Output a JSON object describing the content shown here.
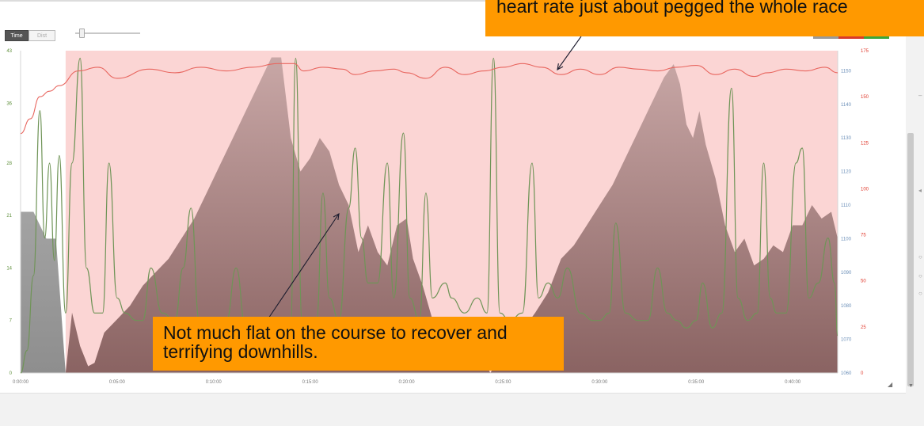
{
  "controls": {
    "time_label": "Time",
    "dist_label": "Dist"
  },
  "annotations": {
    "heart_rate": "heart rate just about pegged the whole race",
    "course": "Not much flat on the course to recover and terrifying downhills."
  },
  "colors": {
    "heart_rate_line": "#e8665f",
    "speed_line": "#6f9457",
    "elevation_fill": "#8b6464",
    "band_fill": "#fbd5d4",
    "callout": "#ff9900",
    "axis_left": "#5e8f3a",
    "axis_right_elev": "#6b8fb8",
    "axis_right_hr": "#e03a2d"
  },
  "legend_swatches": [
    "#9a9a9a",
    "#d83a2a",
    "#3aa63a"
  ],
  "chart_data": {
    "type": "line",
    "grid": false,
    "x_ticks": [
      "0:00:00",
      "0:05:00",
      "0:10:00",
      "0:15:00",
      "0:20:00",
      "0:25:00",
      "0:30:00",
      "0:35:00",
      "0:40:00"
    ],
    "x_tick_seconds": [
      0,
      300,
      600,
      900,
      1200,
      1500,
      1800,
      2100,
      2400
    ],
    "x_range": [
      0,
      2540
    ],
    "y_axes": {
      "speed": {
        "ticks": [
          "0",
          "7",
          "14",
          "21",
          "28",
          "36",
          "43"
        ],
        "range": [
          0,
          43
        ]
      },
      "elevation": {
        "ticks": [
          "1060",
          "1070",
          "1080",
          "1090",
          "1100",
          "1110",
          "1120",
          "1130",
          "1140",
          "1150"
        ],
        "range": [
          1060,
          1156
        ]
      },
      "heart_rate": {
        "ticks": [
          "0",
          "25",
          "50",
          "75",
          "100",
          "125",
          "150",
          "175"
        ],
        "range": [
          0,
          175
        ]
      }
    },
    "highlight_range": {
      "start": 140,
      "end": 2540
    },
    "series": [
      {
        "role": "heart_rate",
        "axis": "heart_rate",
        "points": [
          [
            0,
            130
          ],
          [
            30,
            138
          ],
          [
            60,
            150
          ],
          [
            90,
            153
          ],
          [
            120,
            156
          ],
          [
            180,
            164
          ],
          [
            240,
            166
          ],
          [
            300,
            160
          ],
          [
            400,
            165
          ],
          [
            480,
            163
          ],
          [
            560,
            166
          ],
          [
            640,
            164
          ],
          [
            720,
            166
          ],
          [
            800,
            168
          ],
          [
            850,
            168
          ],
          [
            880,
            164
          ],
          [
            940,
            166
          ],
          [
            1000,
            165
          ],
          [
            1040,
            162
          ],
          [
            1100,
            164
          ],
          [
            1160,
            165
          ],
          [
            1200,
            163
          ],
          [
            1260,
            160
          ],
          [
            1320,
            166
          ],
          [
            1380,
            162
          ],
          [
            1440,
            164
          ],
          [
            1500,
            166
          ],
          [
            1560,
            168
          ],
          [
            1620,
            166
          ],
          [
            1680,
            162
          ],
          [
            1740,
            165
          ],
          [
            1800,
            162
          ],
          [
            1860,
            166
          ],
          [
            1920,
            165
          ],
          [
            1980,
            164
          ],
          [
            2040,
            166
          ],
          [
            2100,
            167
          ],
          [
            2160,
            162
          ],
          [
            2220,
            165
          ],
          [
            2280,
            161
          ],
          [
            2320,
            163
          ],
          [
            2380,
            165
          ],
          [
            2440,
            164
          ],
          [
            2500,
            166
          ],
          [
            2540,
            163
          ]
        ]
      },
      {
        "role": "speed",
        "axis": "speed",
        "points": [
          [
            0,
            0
          ],
          [
            20,
            3
          ],
          [
            40,
            13
          ],
          [
            60,
            35
          ],
          [
            75,
            18
          ],
          [
            90,
            28
          ],
          [
            105,
            15
          ],
          [
            120,
            29
          ],
          [
            140,
            8
          ],
          [
            160,
            28
          ],
          [
            185,
            42
          ],
          [
            205,
            14
          ],
          [
            230,
            8
          ],
          [
            255,
            8
          ],
          [
            275,
            28
          ],
          [
            300,
            10
          ],
          [
            325,
            8
          ],
          [
            360,
            7
          ],
          [
            380,
            7
          ],
          [
            405,
            14
          ],
          [
            440,
            8
          ],
          [
            480,
            7
          ],
          [
            505,
            14
          ],
          [
            530,
            22
          ],
          [
            555,
            7
          ],
          [
            600,
            6
          ],
          [
            640,
            7
          ],
          [
            670,
            14
          ],
          [
            700,
            6
          ],
          [
            740,
            6
          ],
          [
            780,
            7
          ],
          [
            810,
            6
          ],
          [
            840,
            7
          ],
          [
            855,
            42
          ],
          [
            875,
            7
          ],
          [
            920,
            7
          ],
          [
            940,
            24
          ],
          [
            960,
            10
          ],
          [
            990,
            7
          ],
          [
            1020,
            22
          ],
          [
            1040,
            30
          ],
          [
            1060,
            18
          ],
          [
            1080,
            12
          ],
          [
            1110,
            12
          ],
          [
            1140,
            28
          ],
          [
            1160,
            10
          ],
          [
            1190,
            32
          ],
          [
            1210,
            10
          ],
          [
            1240,
            7
          ],
          [
            1260,
            24
          ],
          [
            1280,
            10
          ],
          [
            1320,
            12
          ],
          [
            1340,
            10
          ],
          [
            1380,
            8
          ],
          [
            1420,
            10
          ],
          [
            1450,
            8
          ],
          [
            1470,
            42
          ],
          [
            1490,
            8
          ],
          [
            1520,
            7
          ],
          [
            1560,
            8
          ],
          [
            1590,
            28
          ],
          [
            1610,
            10
          ],
          [
            1640,
            12
          ],
          [
            1670,
            10
          ],
          [
            1700,
            14
          ],
          [
            1740,
            8
          ],
          [
            1780,
            7
          ],
          [
            1800,
            7
          ],
          [
            1830,
            8
          ],
          [
            1850,
            20
          ],
          [
            1880,
            8
          ],
          [
            1920,
            7
          ],
          [
            1950,
            7
          ],
          [
            1980,
            14
          ],
          [
            2010,
            8
          ],
          [
            2040,
            7
          ],
          [
            2070,
            6
          ],
          [
            2100,
            7
          ],
          [
            2120,
            12
          ],
          [
            2150,
            6
          ],
          [
            2180,
            8
          ],
          [
            2210,
            38
          ],
          [
            2230,
            10
          ],
          [
            2260,
            7
          ],
          [
            2290,
            8
          ],
          [
            2310,
            28
          ],
          [
            2330,
            10
          ],
          [
            2350,
            8
          ],
          [
            2380,
            8
          ],
          [
            2410,
            28
          ],
          [
            2430,
            30
          ],
          [
            2450,
            10
          ],
          [
            2480,
            12
          ],
          [
            2510,
            18
          ],
          [
            2530,
            12
          ],
          [
            2540,
            5
          ]
        ]
      },
      {
        "role": "elevation",
        "axis": "elevation",
        "points": [
          [
            0,
            1108
          ],
          [
            40,
            1108
          ],
          [
            80,
            1100
          ],
          [
            110,
            1100
          ],
          [
            140,
            1060
          ],
          [
            160,
            1078
          ],
          [
            185,
            1068
          ],
          [
            210,
            1062
          ],
          [
            230,
            1063
          ],
          [
            260,
            1072
          ],
          [
            300,
            1076
          ],
          [
            340,
            1080
          ],
          [
            380,
            1086
          ],
          [
            420,
            1090
          ],
          [
            460,
            1094
          ],
          [
            500,
            1100
          ],
          [
            540,
            1106
          ],
          [
            580,
            1114
          ],
          [
            620,
            1122
          ],
          [
            660,
            1130
          ],
          [
            700,
            1138
          ],
          [
            740,
            1146
          ],
          [
            780,
            1154
          ],
          [
            810,
            1154
          ],
          [
            840,
            1130
          ],
          [
            870,
            1120
          ],
          [
            900,
            1124
          ],
          [
            930,
            1130
          ],
          [
            960,
            1126
          ],
          [
            990,
            1116
          ],
          [
            1020,
            1110
          ],
          [
            1050,
            1096
          ],
          [
            1080,
            1104
          ],
          [
            1110,
            1096
          ],
          [
            1140,
            1092
          ],
          [
            1170,
            1104
          ],
          [
            1200,
            1106
          ],
          [
            1220,
            1094
          ],
          [
            1250,
            1086
          ],
          [
            1280,
            1076
          ],
          [
            1310,
            1066
          ],
          [
            1340,
            1070
          ],
          [
            1370,
            1064
          ],
          [
            1400,
            1072
          ],
          [
            1430,
            1066
          ],
          [
            1460,
            1060
          ],
          [
            1500,
            1066
          ],
          [
            1540,
            1070
          ],
          [
            1570,
            1074
          ],
          [
            1600,
            1078
          ],
          [
            1640,
            1084
          ],
          [
            1680,
            1094
          ],
          [
            1720,
            1098
          ],
          [
            1760,
            1104
          ],
          [
            1800,
            1110
          ],
          [
            1840,
            1116
          ],
          [
            1880,
            1124
          ],
          [
            1920,
            1132
          ],
          [
            1960,
            1140
          ],
          [
            2000,
            1148
          ],
          [
            2030,
            1152
          ],
          [
            2050,
            1146
          ],
          [
            2070,
            1134
          ],
          [
            2090,
            1130
          ],
          [
            2110,
            1138
          ],
          [
            2130,
            1128
          ],
          [
            2160,
            1118
          ],
          [
            2190,
            1104
          ],
          [
            2220,
            1096
          ],
          [
            2250,
            1100
          ],
          [
            2280,
            1092
          ],
          [
            2310,
            1094
          ],
          [
            2340,
            1098
          ],
          [
            2370,
            1096
          ],
          [
            2400,
            1104
          ],
          [
            2430,
            1104
          ],
          [
            2460,
            1110
          ],
          [
            2490,
            1106
          ],
          [
            2520,
            1108
          ],
          [
            2540,
            1100
          ]
        ]
      }
    ]
  }
}
